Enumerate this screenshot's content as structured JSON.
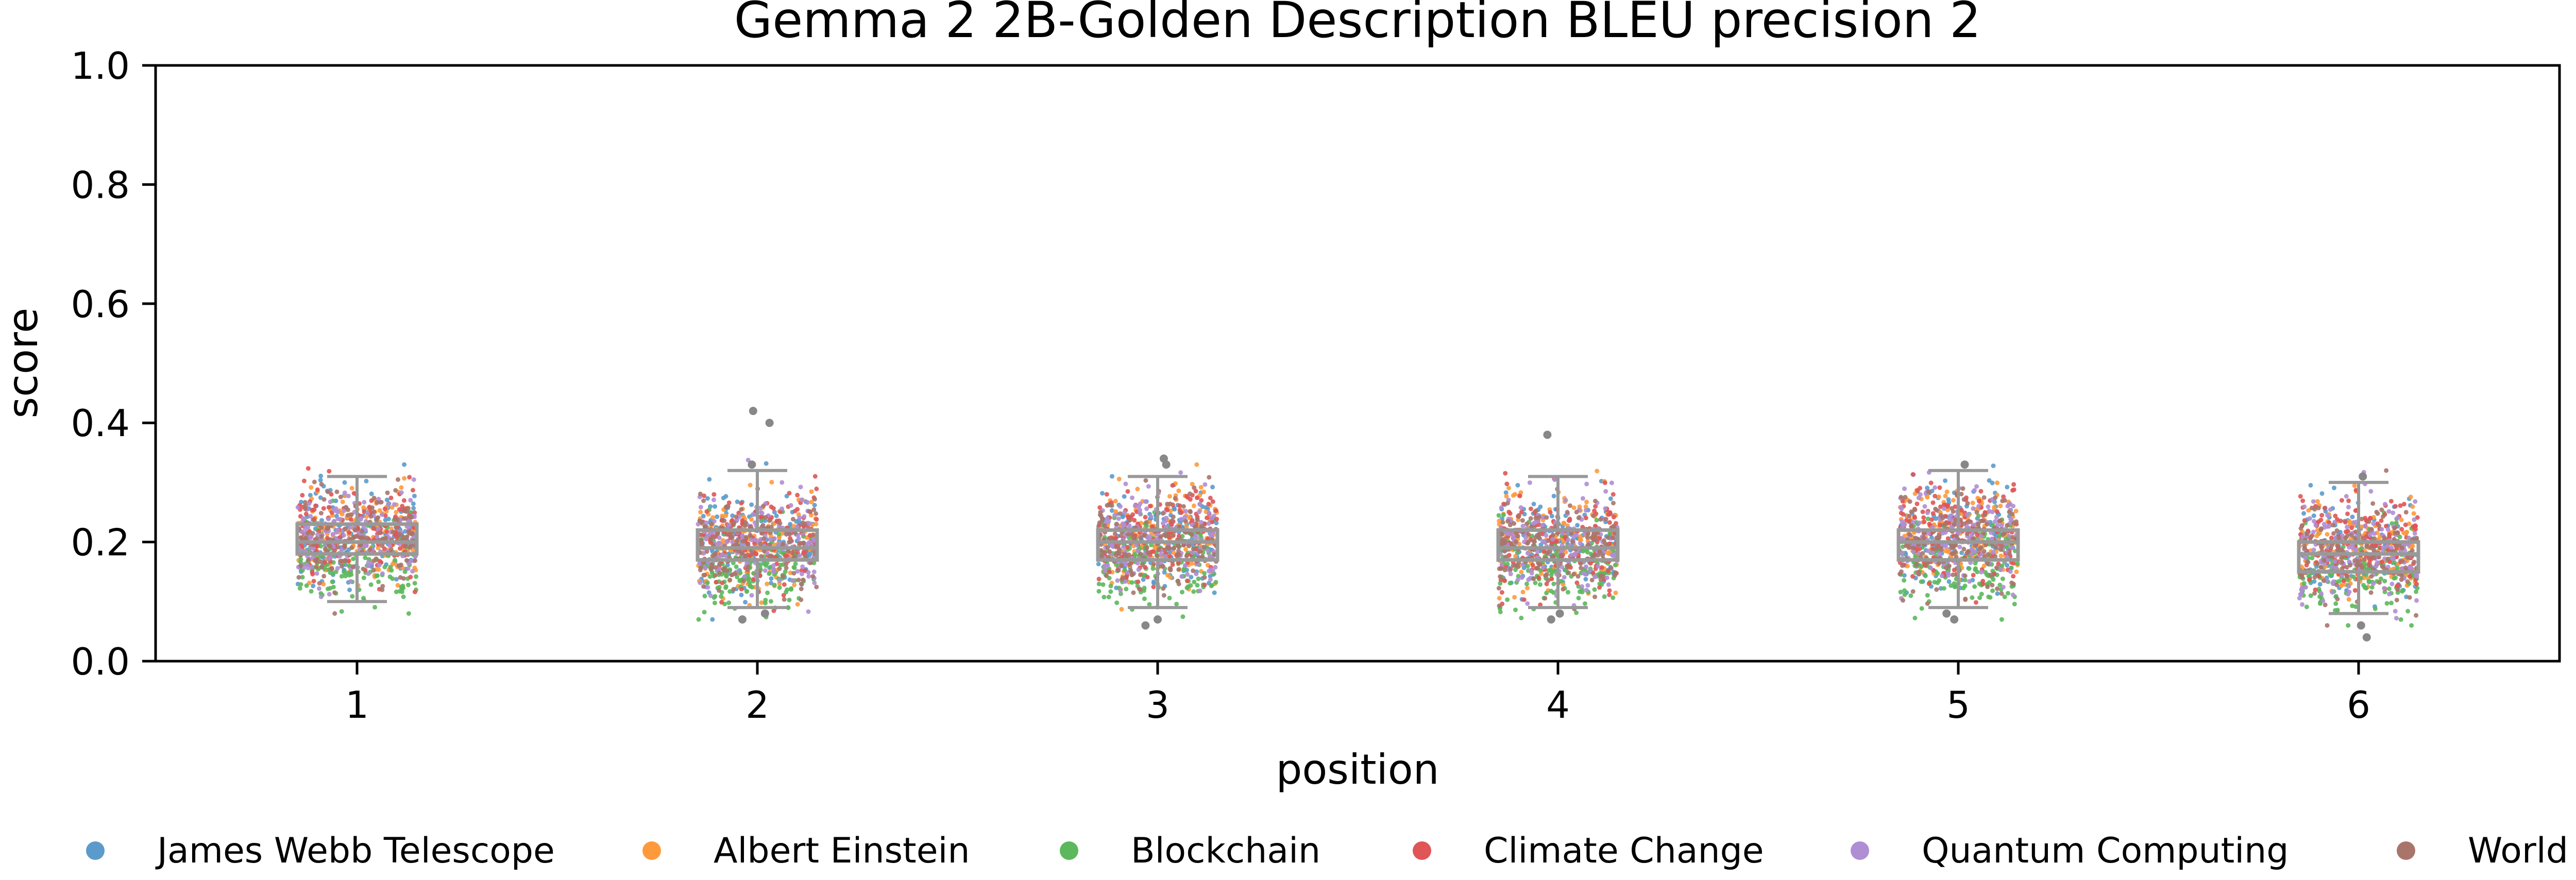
{
  "chart_data": {
    "type": "scatter",
    "subtype": "box-strip",
    "title": "Gemma 2 2B-Golden Description BLEU precision 2",
    "xlabel": "position",
    "ylabel": "score",
    "ylim": [
      0,
      1
    ],
    "yticks": [
      "0.0",
      "0.2",
      "0.4",
      "0.6",
      "0.8",
      "1.0"
    ],
    "categories": [
      "1",
      "2",
      "3",
      "4",
      "5",
      "6"
    ],
    "grid": false,
    "legend_position": "bottom",
    "box_color": "#999999",
    "boxes": [
      {
        "position": "1",
        "q1": 0.18,
        "median": 0.2,
        "q3": 0.23,
        "whisker_low": 0.1,
        "whisker_high": 0.31,
        "outliers": []
      },
      {
        "position": "2",
        "q1": 0.17,
        "median": 0.19,
        "q3": 0.22,
        "whisker_low": 0.09,
        "whisker_high": 0.32,
        "outliers": [
          0.42,
          0.4,
          0.33,
          0.08,
          0.07
        ]
      },
      {
        "position": "3",
        "q1": 0.17,
        "median": 0.2,
        "q3": 0.22,
        "whisker_low": 0.09,
        "whisker_high": 0.31,
        "outliers": [
          0.34,
          0.33,
          0.07,
          0.06
        ]
      },
      {
        "position": "4",
        "q1": 0.17,
        "median": 0.19,
        "q3": 0.22,
        "whisker_low": 0.09,
        "whisker_high": 0.31,
        "outliers": [
          0.38,
          0.08,
          0.07
        ]
      },
      {
        "position": "5",
        "q1": 0.17,
        "median": 0.2,
        "q3": 0.22,
        "whisker_low": 0.09,
        "whisker_high": 0.32,
        "outliers": [
          0.33,
          0.08,
          0.07
        ]
      },
      {
        "position": "6",
        "q1": 0.15,
        "median": 0.18,
        "q3": 0.2,
        "whisker_low": 0.08,
        "whisker_high": 0.3,
        "outliers": [
          0.31,
          0.06,
          0.04
        ]
      }
    ],
    "series": [
      {
        "name": "James Webb Telescope",
        "color": "#5b9bcb",
        "center": 0.205,
        "spread": 0.042
      },
      {
        "name": "Albert Einstein",
        "color": "#ff9a3c",
        "center": 0.205,
        "spread": 0.04
      },
      {
        "name": "Blockchain",
        "color": "#5cb85c",
        "center": 0.16,
        "spread": 0.035
      },
      {
        "name": "Climate Change",
        "color": "#e05555",
        "center": 0.21,
        "spread": 0.04
      },
      {
        "name": "Quantum Computing",
        "color": "#b08ed4",
        "center": 0.2,
        "spread": 0.04
      },
      {
        "name": "World War II",
        "color": "#a9756b",
        "center": 0.195,
        "spread": 0.04
      }
    ]
  }
}
